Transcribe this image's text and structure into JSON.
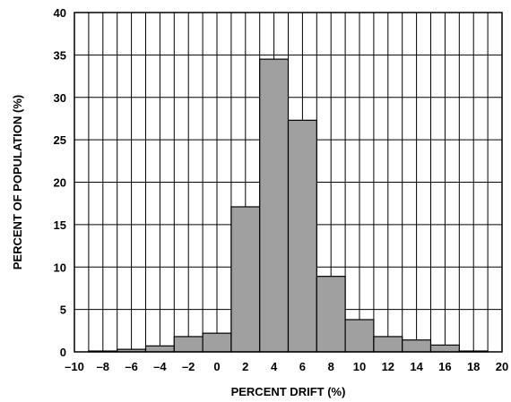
{
  "chart_data": {
    "type": "bar",
    "title": "",
    "xlabel": "PERCENT DRIFT (%)",
    "ylabel": "PERCENT OF POPULATION (%)",
    "xlim": [
      -10,
      20
    ],
    "ylim": [
      0,
      40
    ],
    "x_ticks": [
      -10,
      -8,
      -6,
      -4,
      -2,
      0,
      2,
      4,
      6,
      8,
      10,
      12,
      14,
      16,
      18,
      20
    ],
    "x_tick_labels": [
      "–10",
      "–8",
      "–6",
      "–4",
      "–2",
      "0",
      "2",
      "4",
      "6",
      "8",
      "10",
      "12",
      "14",
      "16",
      "18",
      "20"
    ],
    "y_ticks": [
      0,
      5,
      10,
      15,
      20,
      25,
      30,
      35,
      40
    ],
    "y_tick_labels": [
      "0",
      "5",
      "10",
      "15",
      "20",
      "25",
      "30",
      "35",
      "40"
    ],
    "grid": true,
    "bin_width": 2,
    "bins": [
      {
        "x_start": -9,
        "value": 0.1
      },
      {
        "x_start": -7,
        "value": 0.3
      },
      {
        "x_start": -5,
        "value": 0.7
      },
      {
        "x_start": -3,
        "value": 1.8
      },
      {
        "x_start": -1,
        "value": 2.2
      },
      {
        "x_start": 1,
        "value": 17.1
      },
      {
        "x_start": 3,
        "value": 34.5
      },
      {
        "x_start": 5,
        "value": 27.3
      },
      {
        "x_start": 7,
        "value": 8.9
      },
      {
        "x_start": 9,
        "value": 3.8
      },
      {
        "x_start": 11,
        "value": 1.8
      },
      {
        "x_start": 13,
        "value": 1.4
      },
      {
        "x_start": 15,
        "value": 0.8
      },
      {
        "x_start": 17,
        "value": 0.1
      }
    ]
  }
}
